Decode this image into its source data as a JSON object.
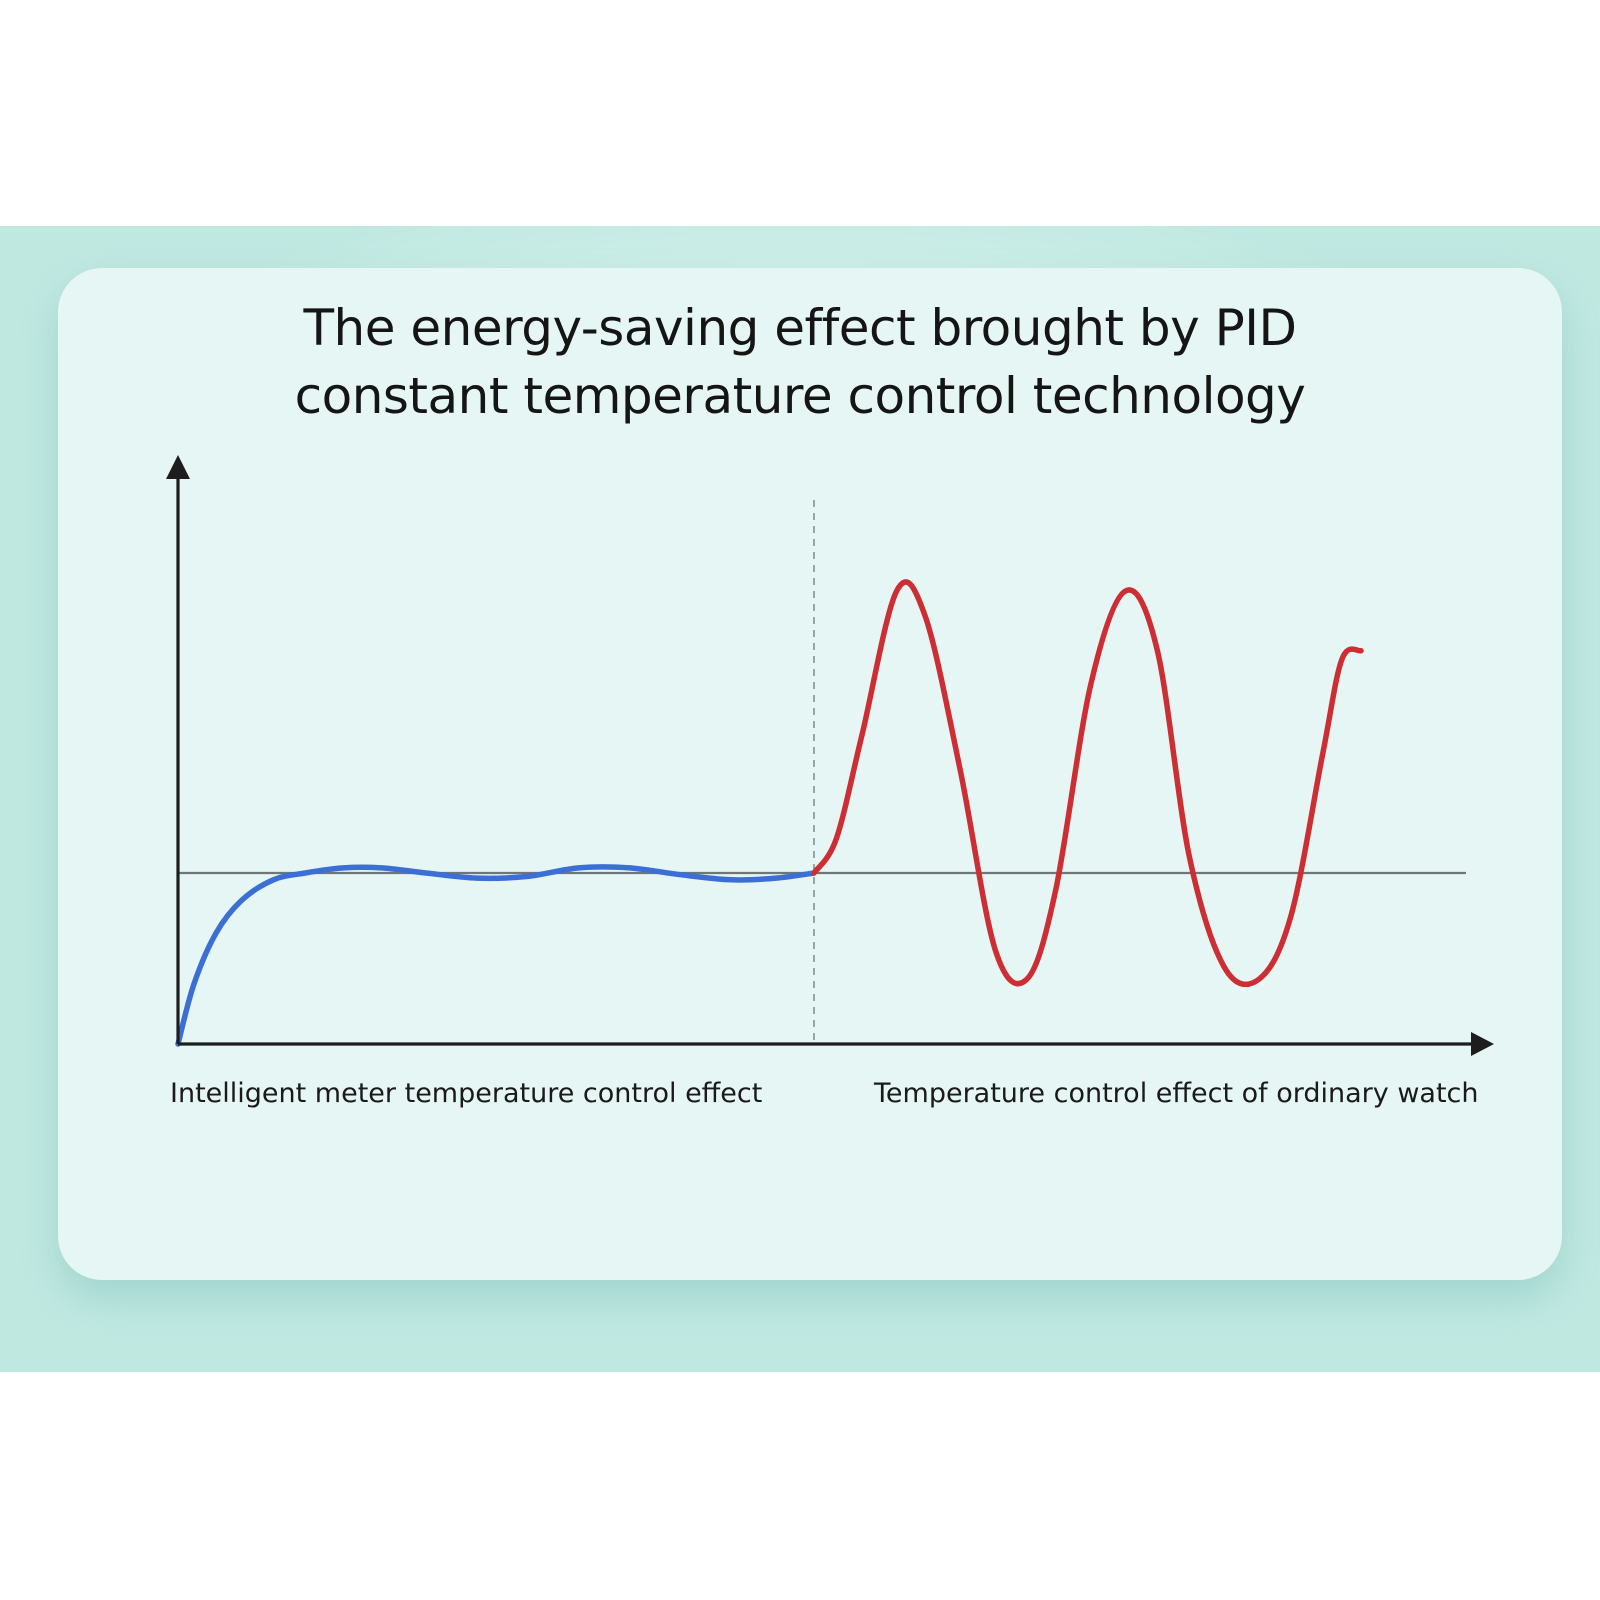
{
  "chart_data": {
    "type": "line",
    "title": "The energy-saving effect brought by PID constant temperature control technology",
    "title_lines": [
      "The energy-saving effect brought by PID",
      "constant temperature control technology"
    ],
    "xlabel": "",
    "ylabel": "",
    "grid": false,
    "axis_ticks": false,
    "reference_line": {
      "y": 1.0
    },
    "xlim": [
      0,
      20
    ],
    "ylim": [
      0,
      3
    ],
    "divider_x": 10,
    "sections": [
      {
        "label": "Intelligent meter temperature control effect",
        "x_range": [
          0,
          10
        ]
      },
      {
        "label": "Temperature control effect of ordinary watch",
        "x_range": [
          10,
          20
        ]
      }
    ],
    "series": [
      {
        "color": "#3b6fd6",
        "x": [
          0,
          0.25,
          0.6,
          1.0,
          1.5,
          2.0,
          2.6,
          3.2,
          3.9,
          4.7,
          5.5,
          6.3,
          7.1,
          7.9,
          8.7,
          9.4,
          10.0
        ],
        "y": [
          0,
          0.35,
          0.65,
          0.84,
          0.96,
          1.0,
          1.03,
          1.03,
          1.0,
          0.97,
          0.98,
          1.03,
          1.03,
          0.99,
          0.96,
          0.97,
          1.0
        ]
      },
      {
        "color": "#cc2e33",
        "x": [
          10.0,
          10.35,
          10.75,
          11.3,
          11.75,
          12.3,
          12.85,
          13.35,
          13.8,
          14.35,
          14.9,
          15.4,
          15.9,
          16.45,
          17.0,
          17.5,
          18.0,
          18.3,
          18.6
        ],
        "y": [
          1.0,
          1.2,
          1.8,
          2.65,
          2.5,
          1.6,
          0.55,
          0.38,
          0.9,
          2.1,
          2.65,
          2.3,
          1.1,
          0.45,
          0.38,
          0.75,
          1.7,
          2.25,
          2.3
        ]
      }
    ]
  }
}
